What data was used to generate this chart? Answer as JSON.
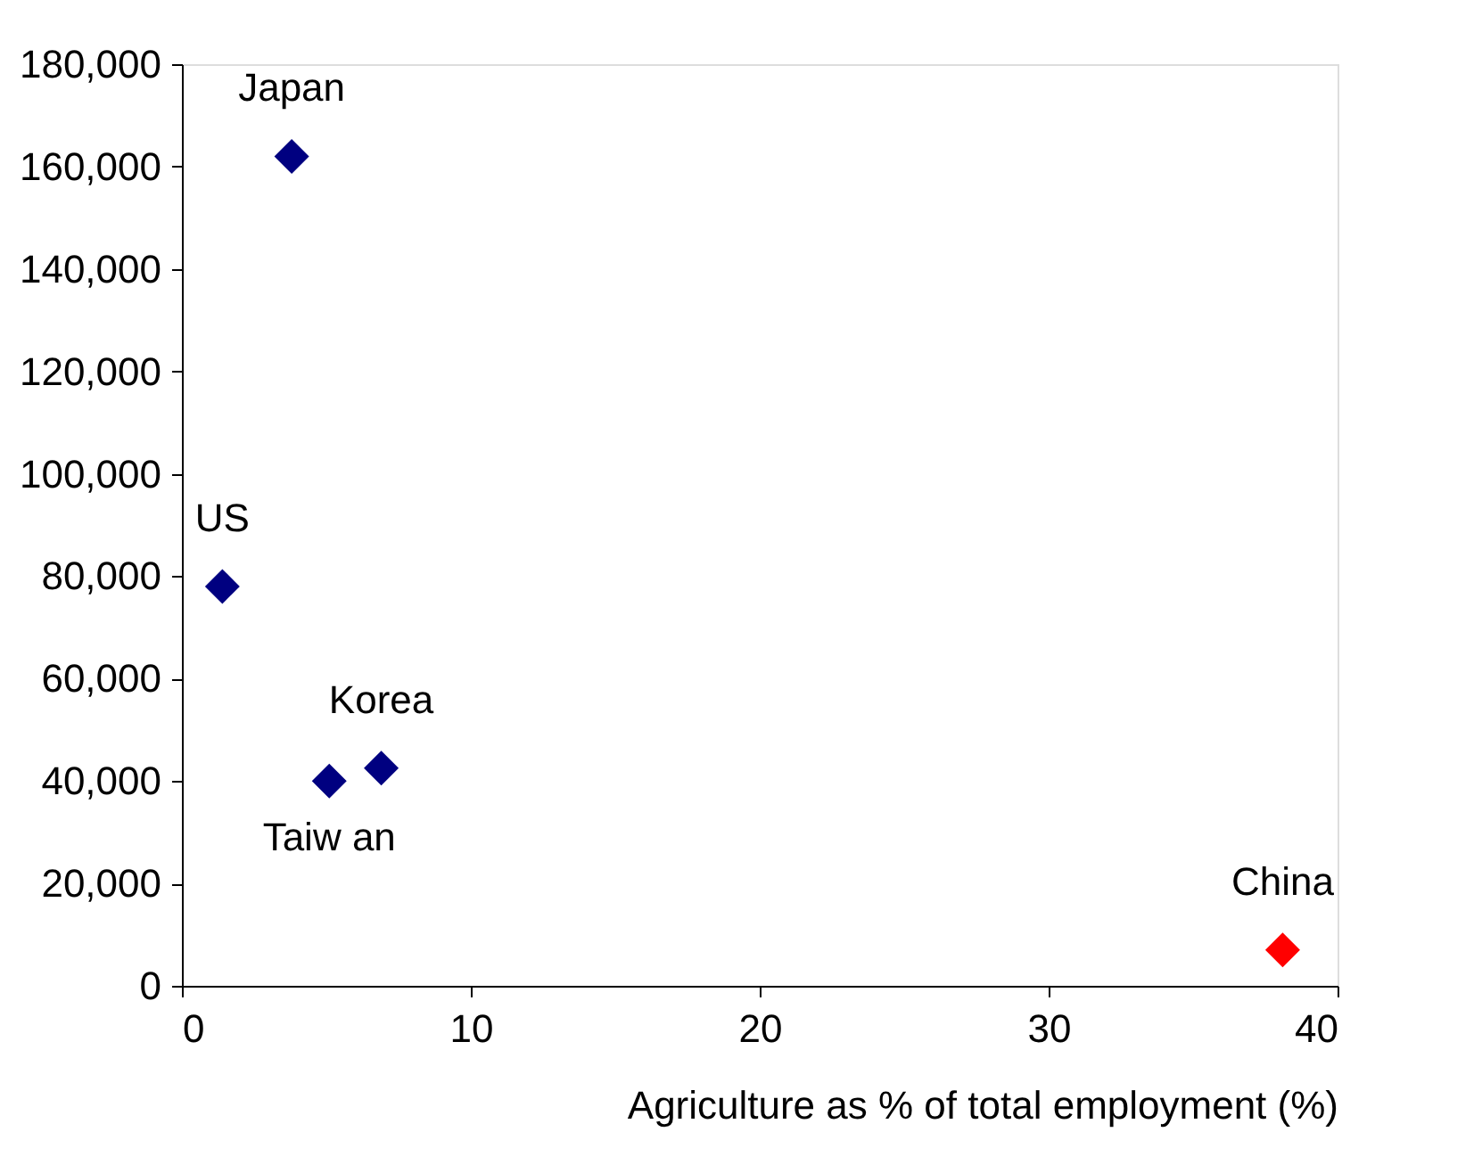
{
  "chart_data": {
    "type": "scatter",
    "xlabel": "Agriculture as % of total employment (%)",
    "x": [
      3.8,
      1.4,
      5.1,
      6.9,
      38.1
    ],
    "values": [
      162000,
      78000,
      40000,
      42500,
      7000
    ],
    "colors": [
      "#000080",
      "#000080",
      "#000080",
      "#000080",
      "#ff0000"
    ],
    "marker": "diamond",
    "grid": false,
    "legend": false,
    "xlim": [
      0,
      40
    ],
    "xticks": [
      0,
      10,
      20,
      30,
      40
    ],
    "ylim": [
      0,
      180000
    ],
    "yticks": [
      0,
      {
        "value": 20000,
        "label": "20,000"
      },
      {
        "value": 40000,
        "label": "40,000"
      },
      {
        "value": 60000,
        "label": "60,000"
      },
      {
        "value": 80000,
        "label": "80,000"
      },
      {
        "value": 100000,
        "label": "100,000"
      },
      {
        "value": 120000,
        "label": "120,000"
      },
      {
        "value": 140000,
        "label": "140,000"
      },
      {
        "value": 160000,
        "label": "160,000"
      },
      {
        "value": 180000,
        "label": "180,000"
      }
    ],
    "annotations": [
      {
        "text": "Japan",
        "x": 3.8,
        "y": 162000
      },
      {
        "text": "US",
        "x": 1.4,
        "y": 78000
      },
      {
        "text": "Korea",
        "x": 6.9,
        "y": 42500
      },
      {
        "text": "Taiw an",
        "x": 5.1,
        "y": 40000
      },
      {
        "text": "China",
        "x": 38.1,
        "y": 7000
      }
    ]
  }
}
